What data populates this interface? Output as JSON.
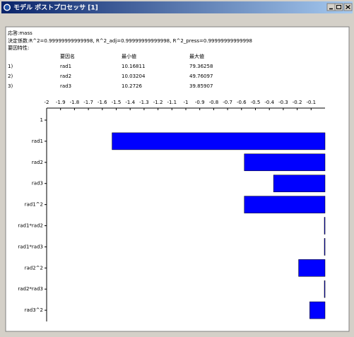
{
  "window": {
    "title": "モデル ポストプロセッサ [1]"
  },
  "report": {
    "response": "応答:mass",
    "fit": "決定係数:R^2=0.99999999999998, R^2_adj=0.99999999999998, R^2_press=0.99999999999998",
    "factor_heading": "要因特性:",
    "table": {
      "columns": [
        "要因名",
        "最小値",
        "最大値"
      ],
      "rows": [
        [
          "1)",
          "rad1",
          "10.16811",
          "79.36258"
        ],
        [
          "2)",
          "rad2",
          "10.03204",
          "49.76097"
        ],
        [
          "3)",
          "rad3",
          "10.2726",
          "39.85907"
        ]
      ]
    }
  },
  "chart_data": {
    "type": "bar",
    "orientation": "horizontal",
    "categories": [
      "1",
      "rad1",
      "rad2",
      "rad3",
      "rad1^2",
      "rad1*rad2",
      "rad1*rad3",
      "rad2^2",
      "rad2*rad3",
      "rad3^2"
    ],
    "values": [
      null,
      -1.53,
      -0.58,
      -0.37,
      -0.58,
      -0.005,
      -0.005,
      -0.19,
      -0.005,
      -0.11
    ],
    "color": "#0000ff",
    "xlim": [
      -2,
      0
    ],
    "xticks": [
      -2,
      -1.9,
      -1.8,
      -1.7,
      -1.6,
      -1.5,
      -1.4,
      -1.3,
      -1.2,
      -1.1,
      -1,
      -0.9,
      -0.8,
      -0.7,
      -0.6,
      -0.5,
      -0.4,
      -0.3,
      -0.2,
      -0.1
    ]
  }
}
